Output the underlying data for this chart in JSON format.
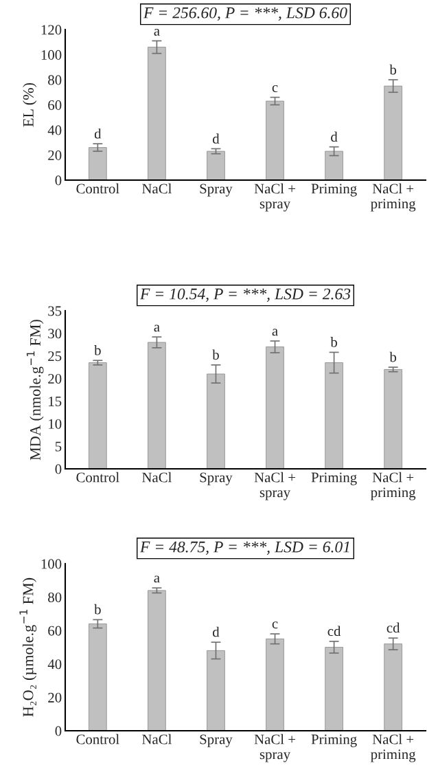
{
  "chart_data": [
    {
      "type": "bar",
      "title": "F = 256.60, P = ***, LSD 6.60",
      "ylabel": "EL (%)",
      "categories": [
        "Control",
        "NaCl",
        "Spray",
        "NaCl +\nspray",
        "Priming",
        "NaCl +\npriming"
      ],
      "values": [
        26,
        106,
        23,
        63,
        23,
        75
      ],
      "errors": [
        3,
        5,
        2,
        3,
        3.5,
        5
      ],
      "value_labels": [
        "d",
        "a",
        "d",
        "c",
        "d",
        "b"
      ],
      "color": "#c0c0c0",
      "ylim": [
        0,
        120
      ],
      "yticks": [
        0,
        20,
        40,
        60,
        80,
        100,
        120
      ],
      "grid": false,
      "legend": false
    },
    {
      "type": "bar",
      "title": "F = 10.54, P = ***, LSD = 2.63",
      "ylabel": "MDA (nmole.g$^{−1}$ FM)",
      "categories": [
        "Control",
        "NaCl",
        "Spray",
        "NaCl +\nspray",
        "Priming",
        "NaCl +\npriming"
      ],
      "values": [
        23.5,
        28,
        21,
        27,
        23.5,
        22
      ],
      "errors": [
        0.5,
        1.2,
        2,
        1.3,
        2.3,
        0.5
      ],
      "value_labels": [
        "b",
        "a",
        "b",
        "a",
        "b",
        "b"
      ],
      "color": "#c0c0c0",
      "ylim": [
        0,
        35
      ],
      "yticks": [
        0,
        5,
        10,
        15,
        20,
        25,
        30,
        35
      ],
      "grid": false,
      "legend": false
    },
    {
      "type": "bar",
      "title": "F = 48.75, P = ***, LSD = 6.01",
      "ylabel": "H₂O₂ (µmole.g$^{−1}$ FM)",
      "categories": [
        "Control",
        "NaCl",
        "Spray",
        "NaCl +\nspray",
        "Priming",
        "NaCl +\npriming"
      ],
      "values": [
        64,
        84,
        48,
        55,
        50,
        52
      ],
      "errors": [
        2.5,
        1.5,
        5,
        3,
        3.5,
        3.5
      ],
      "value_labels": [
        "b",
        "a",
        "d",
        "c",
        "cd",
        "cd"
      ],
      "color": "#c0c0c0",
      "ylim": [
        0,
        100
      ],
      "yticks": [
        0,
        20,
        40,
        60,
        80,
        100
      ],
      "grid": false,
      "legend": false
    }
  ]
}
